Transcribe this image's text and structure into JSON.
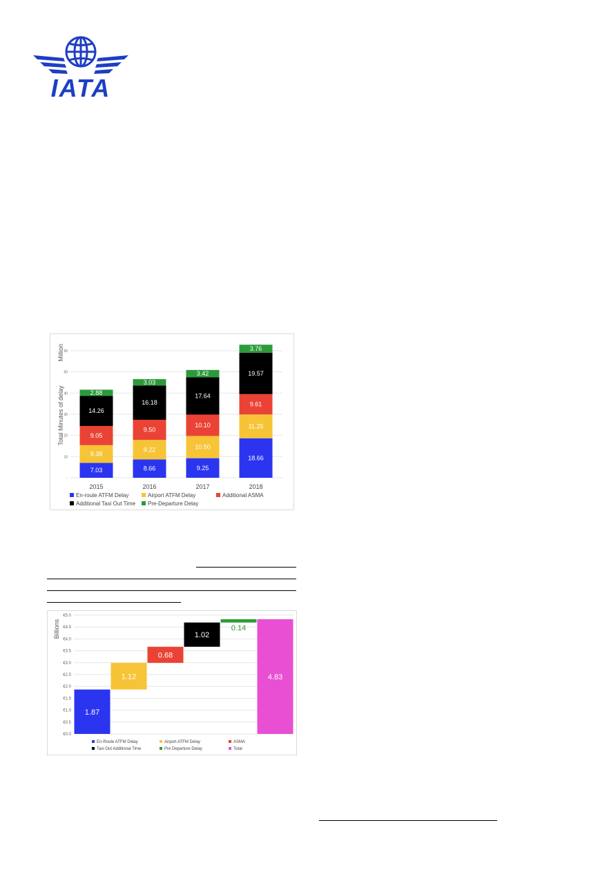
{
  "logo": {
    "text": "IATA",
    "color": "#1e3ec4"
  },
  "charts": [
    {
      "type": "bar",
      "stacked": true,
      "ylabel": "Total Minutes of delay",
      "unit_label": "Million",
      "ylim": [
        0,
        60
      ],
      "yticks": [
        "-",
        "10",
        "20",
        "30",
        "40",
        "50",
        "60"
      ],
      "categories": [
        "2015",
        "2016",
        "2017",
        "2018"
      ],
      "series": [
        {
          "name": "En-route ATFM Delay",
          "color": "#2b35f0",
          "values": [
            7.03,
            8.66,
            9.25,
            18.66
          ],
          "labels": [
            "7.03",
            "8.66",
            "9.25",
            "18.66"
          ]
        },
        {
          "name": "Airport ATFM Delay",
          "color": "#f6c436",
          "values": [
            8.38,
            9.22,
            10.5,
            11.25
          ],
          "labels": [
            "8.38",
            "9.22",
            "10.50",
            "11.25"
          ]
        },
        {
          "name": "Additional ASMA",
          "color": "#ea4335",
          "values": [
            9.05,
            9.5,
            10.1,
            9.61
          ],
          "labels": [
            "9.05",
            "9.50",
            "10.10",
            "9.61"
          ]
        },
        {
          "name": "Additional Taxi Out Time",
          "color": "#000000",
          "values": [
            14.26,
            16.18,
            17.64,
            19.57
          ],
          "labels": [
            "14.26",
            "16.18",
            "17.64",
            "19.57"
          ]
        },
        {
          "name": "Pre-Departure Delay",
          "color": "#2c9a3a",
          "values": [
            2.88,
            3.03,
            3.42,
            3.76
          ],
          "labels": [
            "2.88",
            "3.03",
            "3.42",
            "3.76"
          ]
        }
      ],
      "legend_position": "bottom",
      "grid": true
    },
    {
      "type": "waterfall",
      "ylabel": "Billions",
      "ylim": [
        0,
        5.0
      ],
      "yticks": [
        "€0.0",
        "€0.5",
        "€1.0",
        "€1.5",
        "€2.0",
        "€2.5",
        "€3.0",
        "€3.5",
        "€4.0",
        "€4.5",
        "€5.0"
      ],
      "steps": [
        {
          "name": "En-Route ATFM Delay",
          "value": 1.87,
          "label": "1.87",
          "color": "#2b35f0",
          "label_color": "#ffffff"
        },
        {
          "name": "Airport ATFM Delay",
          "value": 1.12,
          "label": "1.12",
          "color": "#f6c436",
          "label_color": "#ffffff"
        },
        {
          "name": "ASMA",
          "value": 0.68,
          "label": "0.68",
          "color": "#ea4335",
          "label_color": "#ffffff"
        },
        {
          "name": "Taxi Out Additional Time",
          "value": 1.02,
          "label": "1.02",
          "color": "#000000",
          "label_color": "#ffffff"
        },
        {
          "name": "Pre Departure Delay",
          "value": 0.14,
          "label": "0.14",
          "color": "#2c9a3a",
          "label_color": "#2c9a3a"
        },
        {
          "name": "Total",
          "value": 4.83,
          "label": "4.83",
          "color": "#e94fd3",
          "label_color": "#ffffff",
          "is_total": true
        }
      ],
      "legend_position": "bottom",
      "grid": true
    }
  ]
}
